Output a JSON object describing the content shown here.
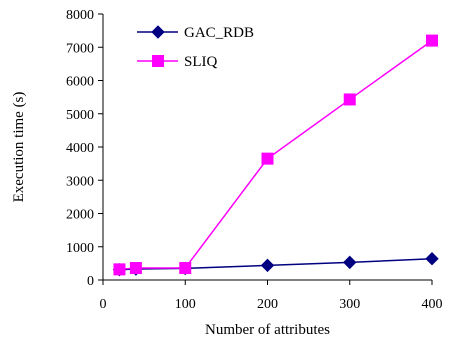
{
  "chart_data": {
    "type": "line",
    "title": "",
    "xlabel": "Number of  attributes",
    "ylabel": "Execution time (s)",
    "xlim": [
      0,
      400
    ],
    "ylim": [
      0,
      8000
    ],
    "xticks": [
      0,
      100,
      200,
      300,
      400
    ],
    "yticks": [
      0,
      1000,
      2000,
      3000,
      4000,
      5000,
      6000,
      7000,
      8000
    ],
    "grid": false,
    "legend_position": "top-left",
    "series": [
      {
        "name": "GAC_RDB",
        "color": "#000080",
        "marker": "diamond",
        "x": [
          20,
          40,
          100,
          200,
          300,
          400
        ],
        "y": [
          310,
          330,
          350,
          440,
          530,
          640
        ]
      },
      {
        "name": "SLIQ",
        "color": "#FF00FF",
        "marker": "square",
        "x": [
          20,
          40,
          100,
          200,
          300,
          400
        ],
        "y": [
          320,
          360,
          360,
          3650,
          5430,
          7200
        ]
      }
    ]
  }
}
